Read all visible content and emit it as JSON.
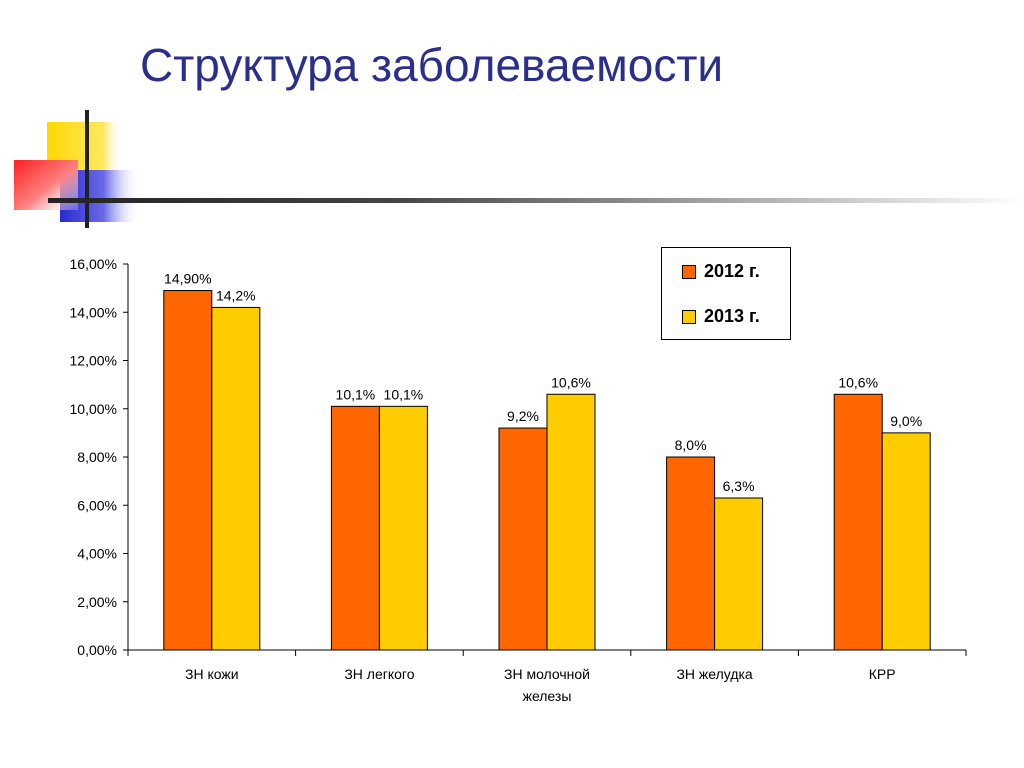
{
  "slide": {
    "title": "Структура заболеваемости"
  },
  "colors": {
    "series_2012": "#ff6600",
    "series_2013": "#ffcc00",
    "title": "#2b2f8c",
    "deco_yellow": "#ffd800",
    "deco_red": "#ff3030",
    "deco_blue": "#3a3ad8"
  },
  "chart_data": {
    "type": "bar",
    "title": "",
    "xlabel": "",
    "ylabel": "",
    "ylim": [
      0,
      16
    ],
    "y_tick_labels": [
      "0,00%",
      "2,00%",
      "4,00%",
      "6,00%",
      "8,00%",
      "10,00%",
      "12,00%",
      "14,00%",
      "16,00%"
    ],
    "y_ticks": [
      0,
      2,
      4,
      6,
      8,
      10,
      12,
      14,
      16
    ],
    "categories": [
      [
        "ЗН кожи"
      ],
      [
        "ЗН легкого"
      ],
      [
        "ЗН молочной",
        "железы"
      ],
      [
        "ЗН желудка"
      ],
      [
        "КРР"
      ]
    ],
    "series": [
      {
        "name": "2012 г.",
        "color": "#ff6600",
        "values": [
          14.9,
          10.1,
          9.2,
          8.0,
          10.6
        ],
        "labels": [
          "14,90%",
          "10,1%",
          "9,2%",
          "8,0%",
          "10,6%"
        ]
      },
      {
        "name": "2013 г.",
        "color": "#ffcc00",
        "values": [
          14.2,
          10.1,
          10.6,
          6.3,
          9.0
        ],
        "labels": [
          "14,2%",
          "10,1%",
          "10,6%",
          "6,3%",
          "9,0%"
        ]
      }
    ],
    "grid": false,
    "legend_position": "top-right"
  }
}
